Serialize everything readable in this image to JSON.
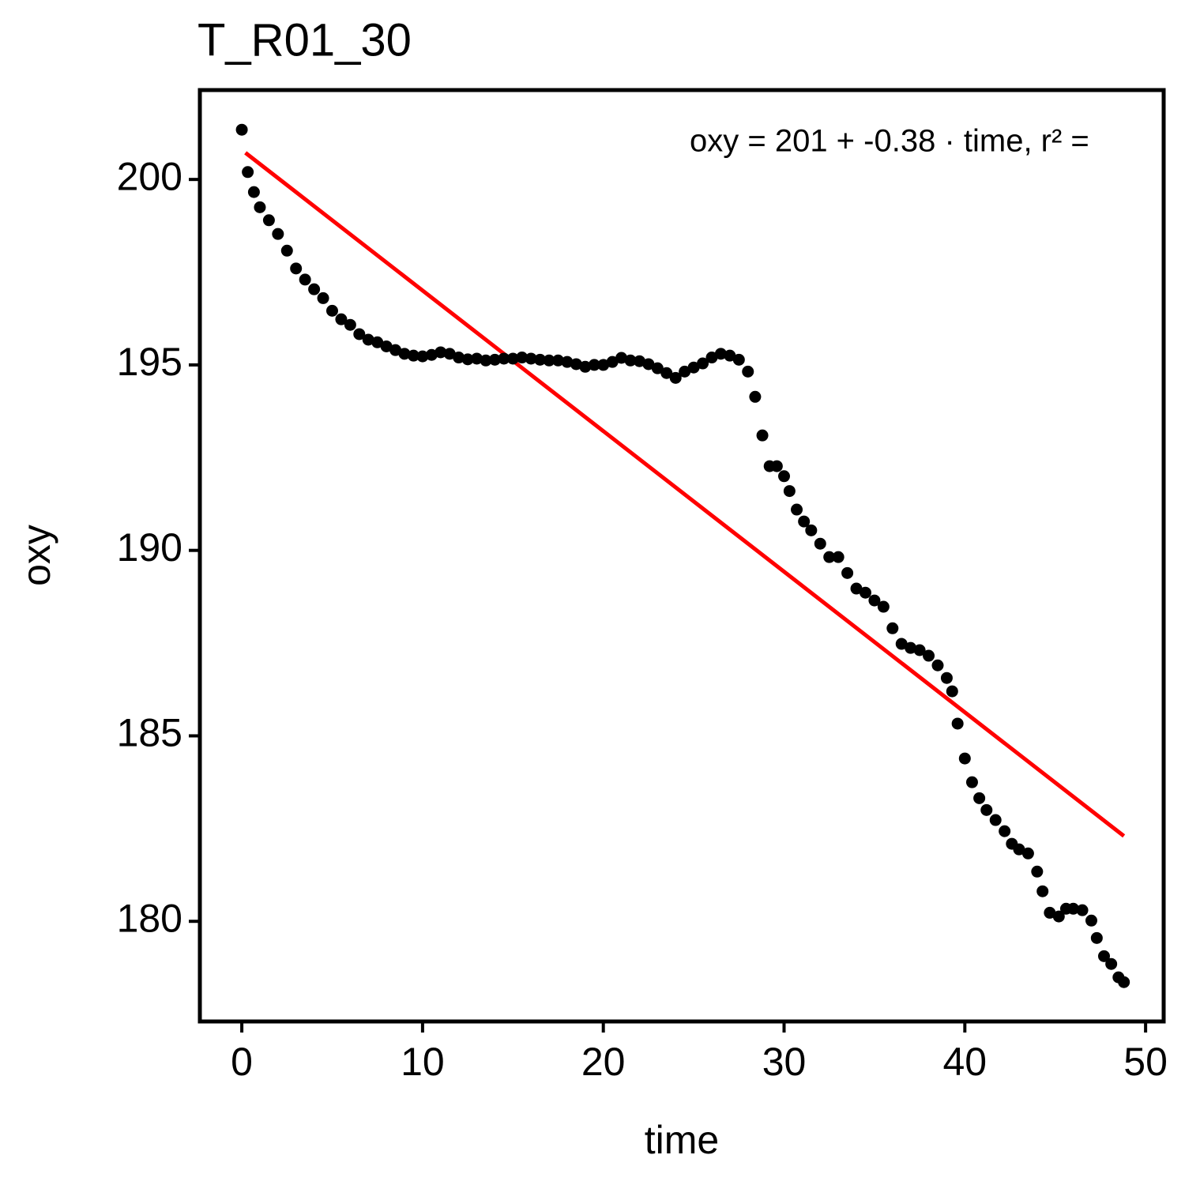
{
  "chart_data": {
    "type": "scatter",
    "title": "T_R01_30",
    "x_label": "time",
    "y_label": "oxy",
    "annotation": "oxy = 201 + -0.38 · time,  r² =",
    "color": "#000000",
    "x": [
      0,
      0.33,
      0.67,
      1,
      1.5,
      2,
      2.5,
      3,
      3.5,
      4,
      4.5,
      5,
      5.5,
      6,
      6.5,
      7,
      7.5,
      8,
      8.5,
      9,
      9.5,
      10,
      10.5,
      11,
      11.5,
      12,
      12.5,
      13,
      13.5,
      14,
      14.5,
      15,
      15.5,
      16,
      16.5,
      17,
      17.5,
      18,
      18.5,
      19,
      19.5,
      20,
      20.5,
      21,
      21.5,
      22,
      22.5,
      23,
      23.5,
      24,
      24.5,
      25,
      25.5,
      26,
      26.5,
      27,
      27.5,
      28,
      28.4,
      28.8,
      29.2,
      29.6,
      30,
      30.3,
      30.7,
      31.1,
      31.5,
      32,
      32.5,
      33,
      33.5,
      34,
      34.5,
      35,
      35.5,
      36,
      36.5,
      37,
      37.5,
      38,
      38.5,
      39,
      39.3,
      39.6,
      40,
      40.4,
      40.8,
      41.2,
      41.7,
      42.2,
      42.6,
      43,
      43.5,
      44,
      44.3,
      44.7,
      45.2,
      45.6,
      46,
      46.5,
      47,
      47.3,
      47.7,
      48.1,
      48.5,
      48.8
    ],
    "values": [
      201.34,
      200.2,
      199.66,
      199.25,
      198.9,
      198.53,
      198.08,
      197.6,
      197.3,
      197.04,
      196.8,
      196.46,
      196.23,
      196.08,
      195.83,
      195.68,
      195.61,
      195.5,
      195.4,
      195.3,
      195.25,
      195.23,
      195.27,
      195.34,
      195.3,
      195.2,
      195.15,
      195.17,
      195.12,
      195.14,
      195.17,
      195.17,
      195.2,
      195.17,
      195.14,
      195.12,
      195.12,
      195.08,
      195.02,
      194.95,
      195.0,
      195.0,
      195.08,
      195.19,
      195.12,
      195.1,
      195.02,
      194.91,
      194.78,
      194.65,
      194.82,
      194.93,
      195.04,
      195.2,
      195.3,
      195.25,
      195.14,
      194.82,
      194.14,
      193.1,
      192.27,
      192.27,
      192.0,
      191.6,
      191.1,
      190.78,
      190.54,
      190.18,
      189.82,
      189.82,
      189.39,
      188.97,
      188.86,
      188.65,
      188.48,
      187.9,
      187.48,
      187.37,
      187.31,
      187.16,
      186.9,
      186.56,
      186.2,
      185.33,
      184.39,
      183.75,
      183.32,
      183.0,
      182.73,
      182.43,
      182.09,
      181.94,
      181.83,
      181.34,
      180.81,
      180.23,
      180.13,
      180.34,
      180.34,
      180.3,
      180.02,
      179.55,
      179.06,
      178.85,
      178.49,
      178.36
    ],
    "fit": {
      "x": [
        0.2,
        48.8
      ],
      "values": [
        200.72,
        182.3
      ],
      "color": "#ff0000"
    },
    "xlim": [
      -2.32,
      51.0
    ],
    "ylim": [
      177.3,
      202.41
    ],
    "xticks": [
      0,
      10,
      20,
      30,
      40,
      50
    ],
    "yticks": [
      180,
      185,
      190,
      195,
      200
    ]
  }
}
